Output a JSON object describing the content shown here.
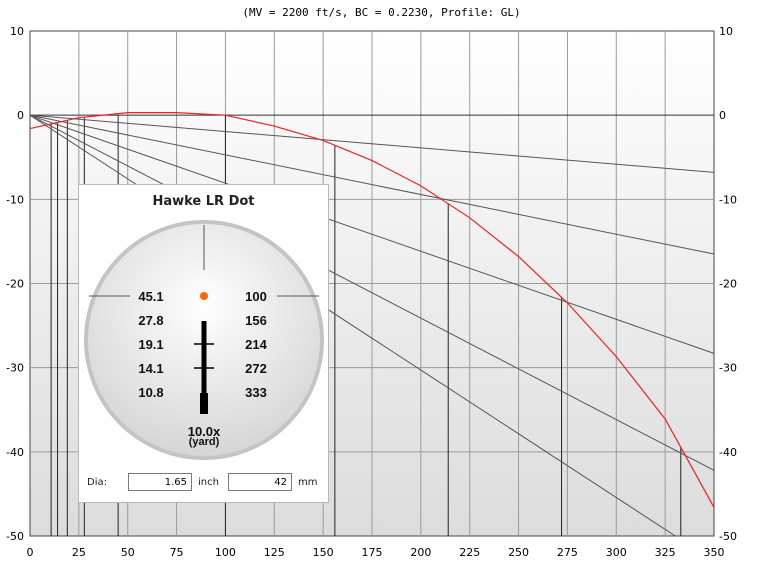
{
  "subtitle": "(MV = 2200 ft/s, BC = 0.2230, Profile: GL)",
  "chart_data": {
    "type": "line",
    "x": [
      0,
      25,
      50,
      75,
      100,
      125,
      150,
      175,
      200,
      225,
      250,
      275,
      300,
      325,
      350
    ],
    "series": [
      {
        "values": [
          -1.6,
          -0.3,
          0.3,
          0.3,
          0.0,
          -1.3,
          -3.0,
          -5.4,
          -8.4,
          -12.2,
          -16.8,
          -22.3,
          -28.7,
          -36.1,
          -46.6
        ],
        "color": "#ee2222"
      }
    ],
    "sight_lines": [
      {
        "value": 45.1,
        "end_y": -6.8
      },
      {
        "value": 27.8,
        "end_y": -16.5
      },
      {
        "value": 19.1,
        "end_y": -28.3
      },
      {
        "value": 14.1,
        "end_y": -42.2
      },
      {
        "value": 10.8,
        "end_y": -53
      }
    ],
    "range_markers": [
      10.8,
      14.1,
      19.1,
      27.8,
      45.1,
      100,
      156,
      214,
      272,
      333
    ],
    "xlim": [
      0,
      350
    ],
    "ylim": [
      -50,
      10
    ],
    "x_ticks": [
      "0",
      "25",
      "50",
      "75",
      "100",
      "125",
      "150",
      "175",
      "200",
      "225",
      "250",
      "275",
      "300",
      "325",
      "350"
    ],
    "y_ticks": [
      "10",
      "0",
      "-10",
      "-20",
      "-30",
      "-40",
      "-50"
    ],
    "grid": true
  },
  "panel": {
    "title": "Hawke LR Dot",
    "left_values": [
      "45.1",
      "27.8",
      "19.1",
      "14.1",
      "10.8"
    ],
    "right_values": [
      "100",
      "156",
      "214",
      "272",
      "333"
    ],
    "magnification": "10.0x",
    "unit": "(yard)",
    "dot_color": "#ff6600",
    "dia_label": "Dia:",
    "dia_inch_value": "1.65",
    "inch_label": "inch",
    "dia_mm_value": "42",
    "mm_label": "mm"
  }
}
